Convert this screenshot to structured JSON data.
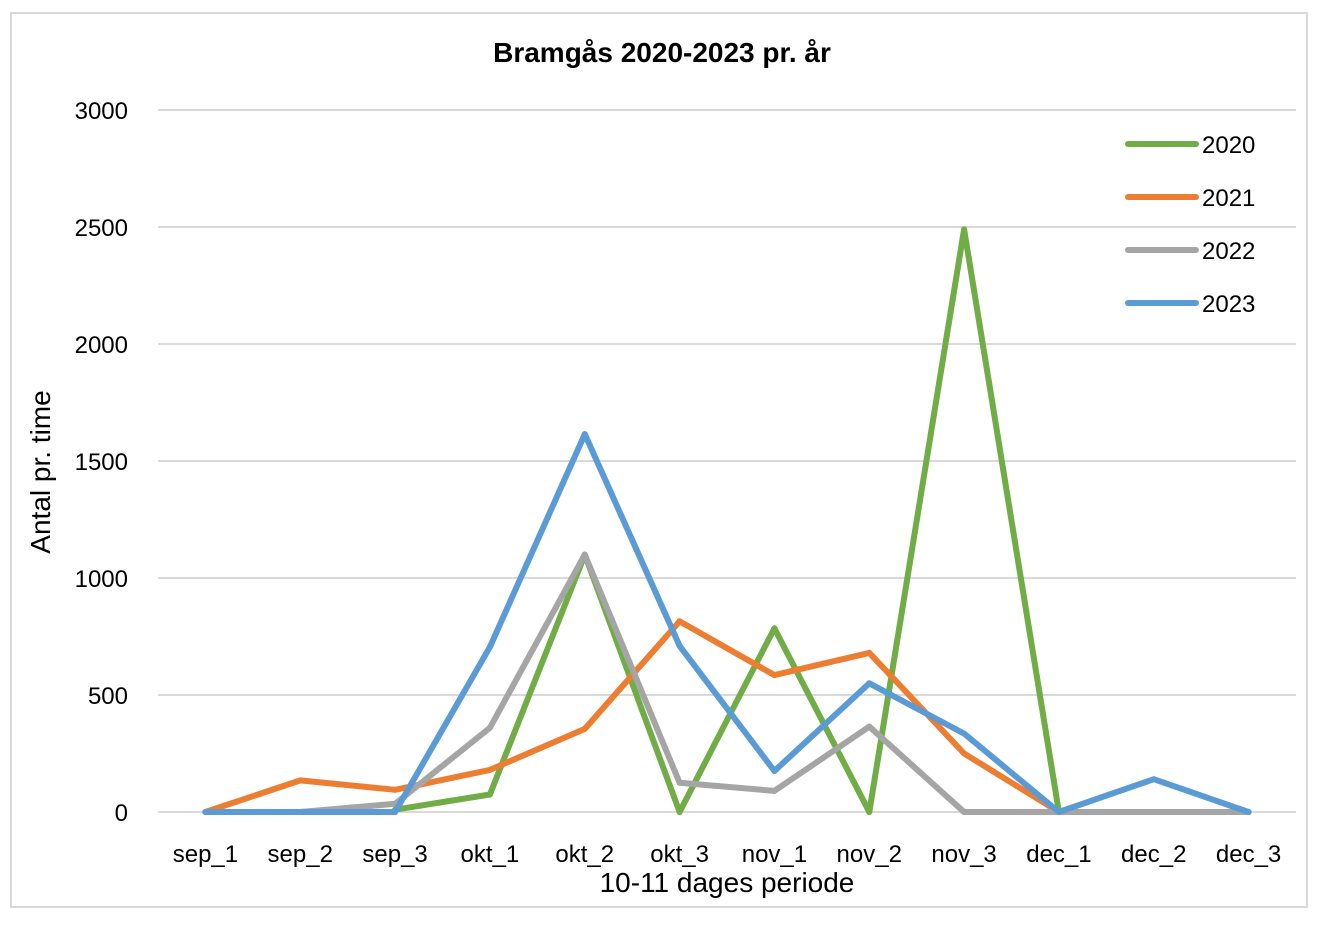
{
  "chart_data": {
    "type": "line",
    "title": "Bramgås 2020-2023 pr. år",
    "xlabel": "10-11 dages periode",
    "ylabel": "Antal pr. time",
    "ylim": [
      0,
      3000
    ],
    "yticks": [
      "0",
      "500",
      "1000",
      "1500",
      "2000",
      "2500",
      "3000"
    ],
    "categories": [
      "sep_1",
      "sep_2",
      "sep_3",
      "okt_1",
      "okt_2",
      "okt_3",
      "nov_1",
      "nov_2",
      "nov_3",
      "dec_1",
      "dec_2",
      "dec_3"
    ],
    "grid": true,
    "legend_position": "top-right",
    "series": [
      {
        "name": "2020",
        "color": "#70AD47",
        "values": [
          0,
          null,
          10,
          75,
          1100,
          0,
          785,
          0,
          2490,
          0,
          null,
          null
        ]
      },
      {
        "name": "2021",
        "color": "#ED7D31",
        "values": [
          0,
          135,
          95,
          180,
          355,
          815,
          585,
          680,
          250,
          0,
          null,
          null
        ]
      },
      {
        "name": "2022",
        "color": "#A5A5A5",
        "values": [
          0,
          0,
          35,
          360,
          1100,
          125,
          90,
          365,
          0,
          0,
          0,
          0
        ]
      },
      {
        "name": "2023",
        "color": "#5B9BD5",
        "values": [
          0,
          0,
          0,
          705,
          1615,
          710,
          175,
          550,
          335,
          0,
          140,
          0
        ]
      }
    ]
  }
}
